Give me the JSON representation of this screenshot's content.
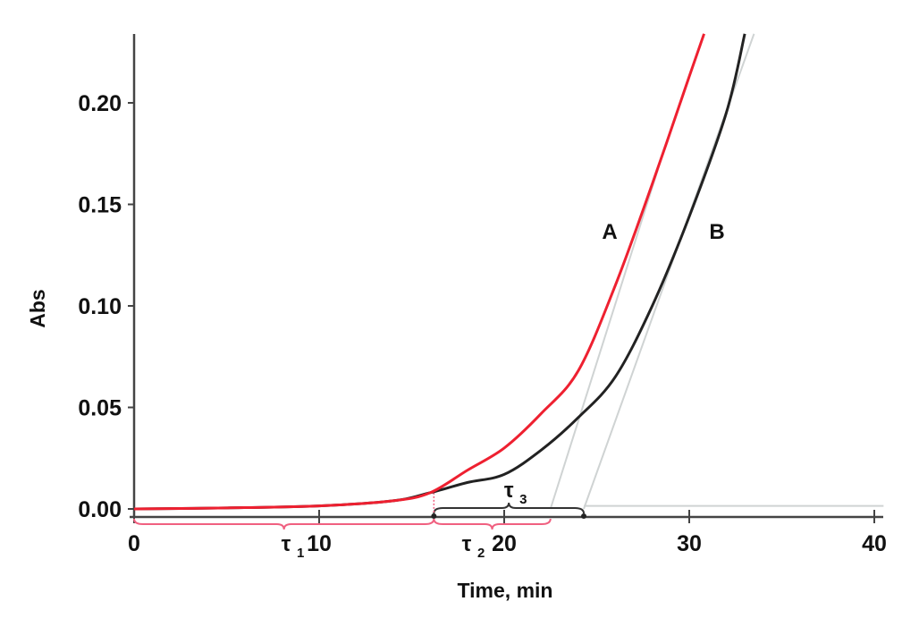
{
  "chart_data": {
    "type": "line",
    "title": "",
    "xlabel": "Time, min",
    "ylabel": "Abs",
    "xlim": [
      0,
      40
    ],
    "ylim": [
      0,
      0.235
    ],
    "xticks": [
      0,
      10,
      20,
      30,
      40
    ],
    "xtick_labels": [
      "0",
      "10",
      "20",
      "30",
      "40"
    ],
    "yticks": [
      0,
      0.05,
      0.1,
      0.15,
      0.2
    ],
    "ytick_labels": [
      "0.00",
      "0.05",
      "0.10",
      "0.15",
      "0.20"
    ],
    "grid": false,
    "series": [
      {
        "name": "A",
        "color": "#ee2030",
        "x": [
          0,
          5,
          10,
          14,
          16,
          18,
          20,
          22,
          24,
          26,
          28,
          30,
          30.8
        ],
        "y": [
          0,
          0.0005,
          0.0015,
          0.004,
          0.008,
          0.019,
          0.03,
          0.047,
          0.068,
          0.11,
          0.16,
          0.213,
          0.234
        ]
      },
      {
        "name": "B",
        "color": "#222222",
        "x": [
          0,
          5,
          10,
          14,
          16,
          18,
          20,
          22,
          24,
          26,
          28,
          30,
          32,
          33
        ],
        "y": [
          0,
          0.0005,
          0.0015,
          0.004,
          0.008,
          0.013,
          0.017,
          0.029,
          0.045,
          0.065,
          0.1,
          0.144,
          0.195,
          0.234
        ]
      }
    ],
    "tangents": [
      {
        "series": "A",
        "x": [
          22.5,
          28.3
        ],
        "y": [
          0,
          0.167
        ]
      },
      {
        "series": "B",
        "x": [
          24.3,
          33.5
        ],
        "y": [
          0,
          0.234
        ]
      }
    ],
    "baseline": {
      "x": [
        24.3,
        40.5
      ],
      "y": [
        0.0015,
        0.0015
      ]
    },
    "annotations": [
      {
        "label": "A",
        "x": 25.7,
        "y": 0.137
      },
      {
        "label": "B",
        "x": 31.5,
        "y": 0.137
      }
    ],
    "intervals": [
      {
        "label": "τ",
        "sub": "1",
        "from": 0,
        "to": 16.2,
        "color": "#f06080",
        "side": "below"
      },
      {
        "label": "τ",
        "sub": "2",
        "from": 16.2,
        "to": 22.5,
        "color": "#f06080",
        "side": "below"
      },
      {
        "label": "τ",
        "sub": "3",
        "from": 16.2,
        "to": 24.3,
        "color": "#333333",
        "side": "above"
      }
    ]
  }
}
